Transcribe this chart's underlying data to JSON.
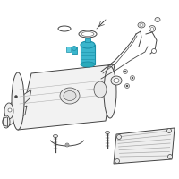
{
  "background_color": "#ffffff",
  "line_color": "#777777",
  "highlight_color": "#3ab5cc",
  "highlight_edge": "#1a90a8",
  "dark_line": "#444444",
  "light_line": "#aaaaaa",
  "figsize": [
    2.0,
    2.0
  ],
  "dpi": 100
}
